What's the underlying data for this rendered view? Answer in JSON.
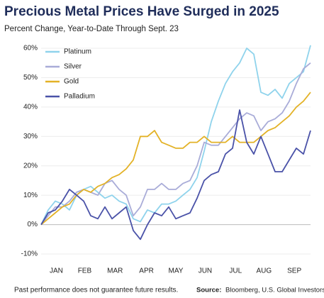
{
  "chart_data": {
    "type": "line",
    "title": "Precious Metal Prices Have Surged in 2025",
    "subtitle": "Percent Change, Year-to-Date Through Sept. 23",
    "footnote": "Past performance does not guarantee future results.",
    "source_label": "Source:",
    "source": "Bloomberg, U.S. Global Investors",
    "x": [
      0,
      7,
      14,
      21,
      28,
      35,
      42,
      49,
      56,
      63,
      70,
      77,
      84,
      91,
      98,
      105,
      112,
      119,
      126,
      133,
      140,
      147,
      154,
      161,
      168,
      175,
      182,
      189,
      196,
      203,
      210,
      217,
      224,
      231,
      238,
      245,
      252,
      259,
      266
    ],
    "xlim": [
      0,
      266
    ],
    "xticks": [
      {
        "value": 15,
        "label": "JAN"
      },
      {
        "value": 43,
        "label": "FEB"
      },
      {
        "value": 73,
        "label": "MAR"
      },
      {
        "value": 104,
        "label": "APR"
      },
      {
        "value": 133,
        "label": "MAY"
      },
      {
        "value": 162,
        "label": "JUN"
      },
      {
        "value": 192,
        "label": "JUL"
      },
      {
        "value": 220,
        "label": "AUG"
      },
      {
        "value": 250,
        "label": "SEP"
      }
    ],
    "ylim": [
      -10,
      60
    ],
    "yticks": [
      {
        "value": -10,
        "label": "-10%"
      },
      {
        "value": 0,
        "label": "0%"
      },
      {
        "value": 10,
        "label": "10%"
      },
      {
        "value": 20,
        "label": "20%"
      },
      {
        "value": 30,
        "label": "30%"
      },
      {
        "value": 40,
        "label": "40%"
      },
      {
        "value": 50,
        "label": "50%"
      },
      {
        "value": 60,
        "label": "60%"
      }
    ],
    "grid": true,
    "legend": "top-left",
    "series": [
      {
        "name": "Platinum",
        "color": "#8fd3ec",
        "values": [
          0,
          5,
          8,
          7,
          5,
          10,
          12,
          13,
          11,
          9,
          10,
          8,
          7,
          2,
          1,
          5,
          4,
          7,
          7,
          8,
          10,
          12,
          16,
          25,
          35,
          42,
          48,
          52,
          55,
          60,
          58,
          45,
          44,
          46,
          43,
          48,
          50,
          52,
          61
        ]
      },
      {
        "name": "Silver",
        "color": "#a9acd8",
        "values": [
          0,
          3,
          6,
          6,
          8,
          11,
          12,
          11,
          10,
          14,
          15,
          12,
          10,
          3,
          6,
          12,
          12,
          14,
          12,
          12,
          14,
          15,
          20,
          28,
          27,
          27,
          30,
          33,
          36,
          38,
          37,
          32,
          35,
          36,
          38,
          42,
          48,
          53,
          55
        ]
      },
      {
        "name": "Gold",
        "color": "#e3b227",
        "values": [
          0,
          2,
          4,
          6,
          7,
          10,
          12,
          11,
          13,
          14,
          16,
          17,
          19,
          22,
          30,
          30,
          32,
          28,
          27,
          26,
          26,
          28,
          28,
          30,
          28,
          28,
          28,
          30,
          28,
          28,
          28,
          30,
          32,
          33,
          35,
          37,
          40,
          42,
          45
        ]
      },
      {
        "name": "Palladium",
        "color": "#4a52a8",
        "values": [
          0,
          4,
          5,
          8,
          12,
          10,
          8,
          3,
          2,
          6,
          2,
          4,
          6,
          -2,
          -5,
          0,
          4,
          3,
          6,
          2,
          3,
          4,
          9,
          15,
          17,
          18,
          24,
          26,
          39,
          28,
          24,
          30,
          24,
          18,
          18,
          22,
          26,
          24,
          32
        ]
      }
    ]
  }
}
